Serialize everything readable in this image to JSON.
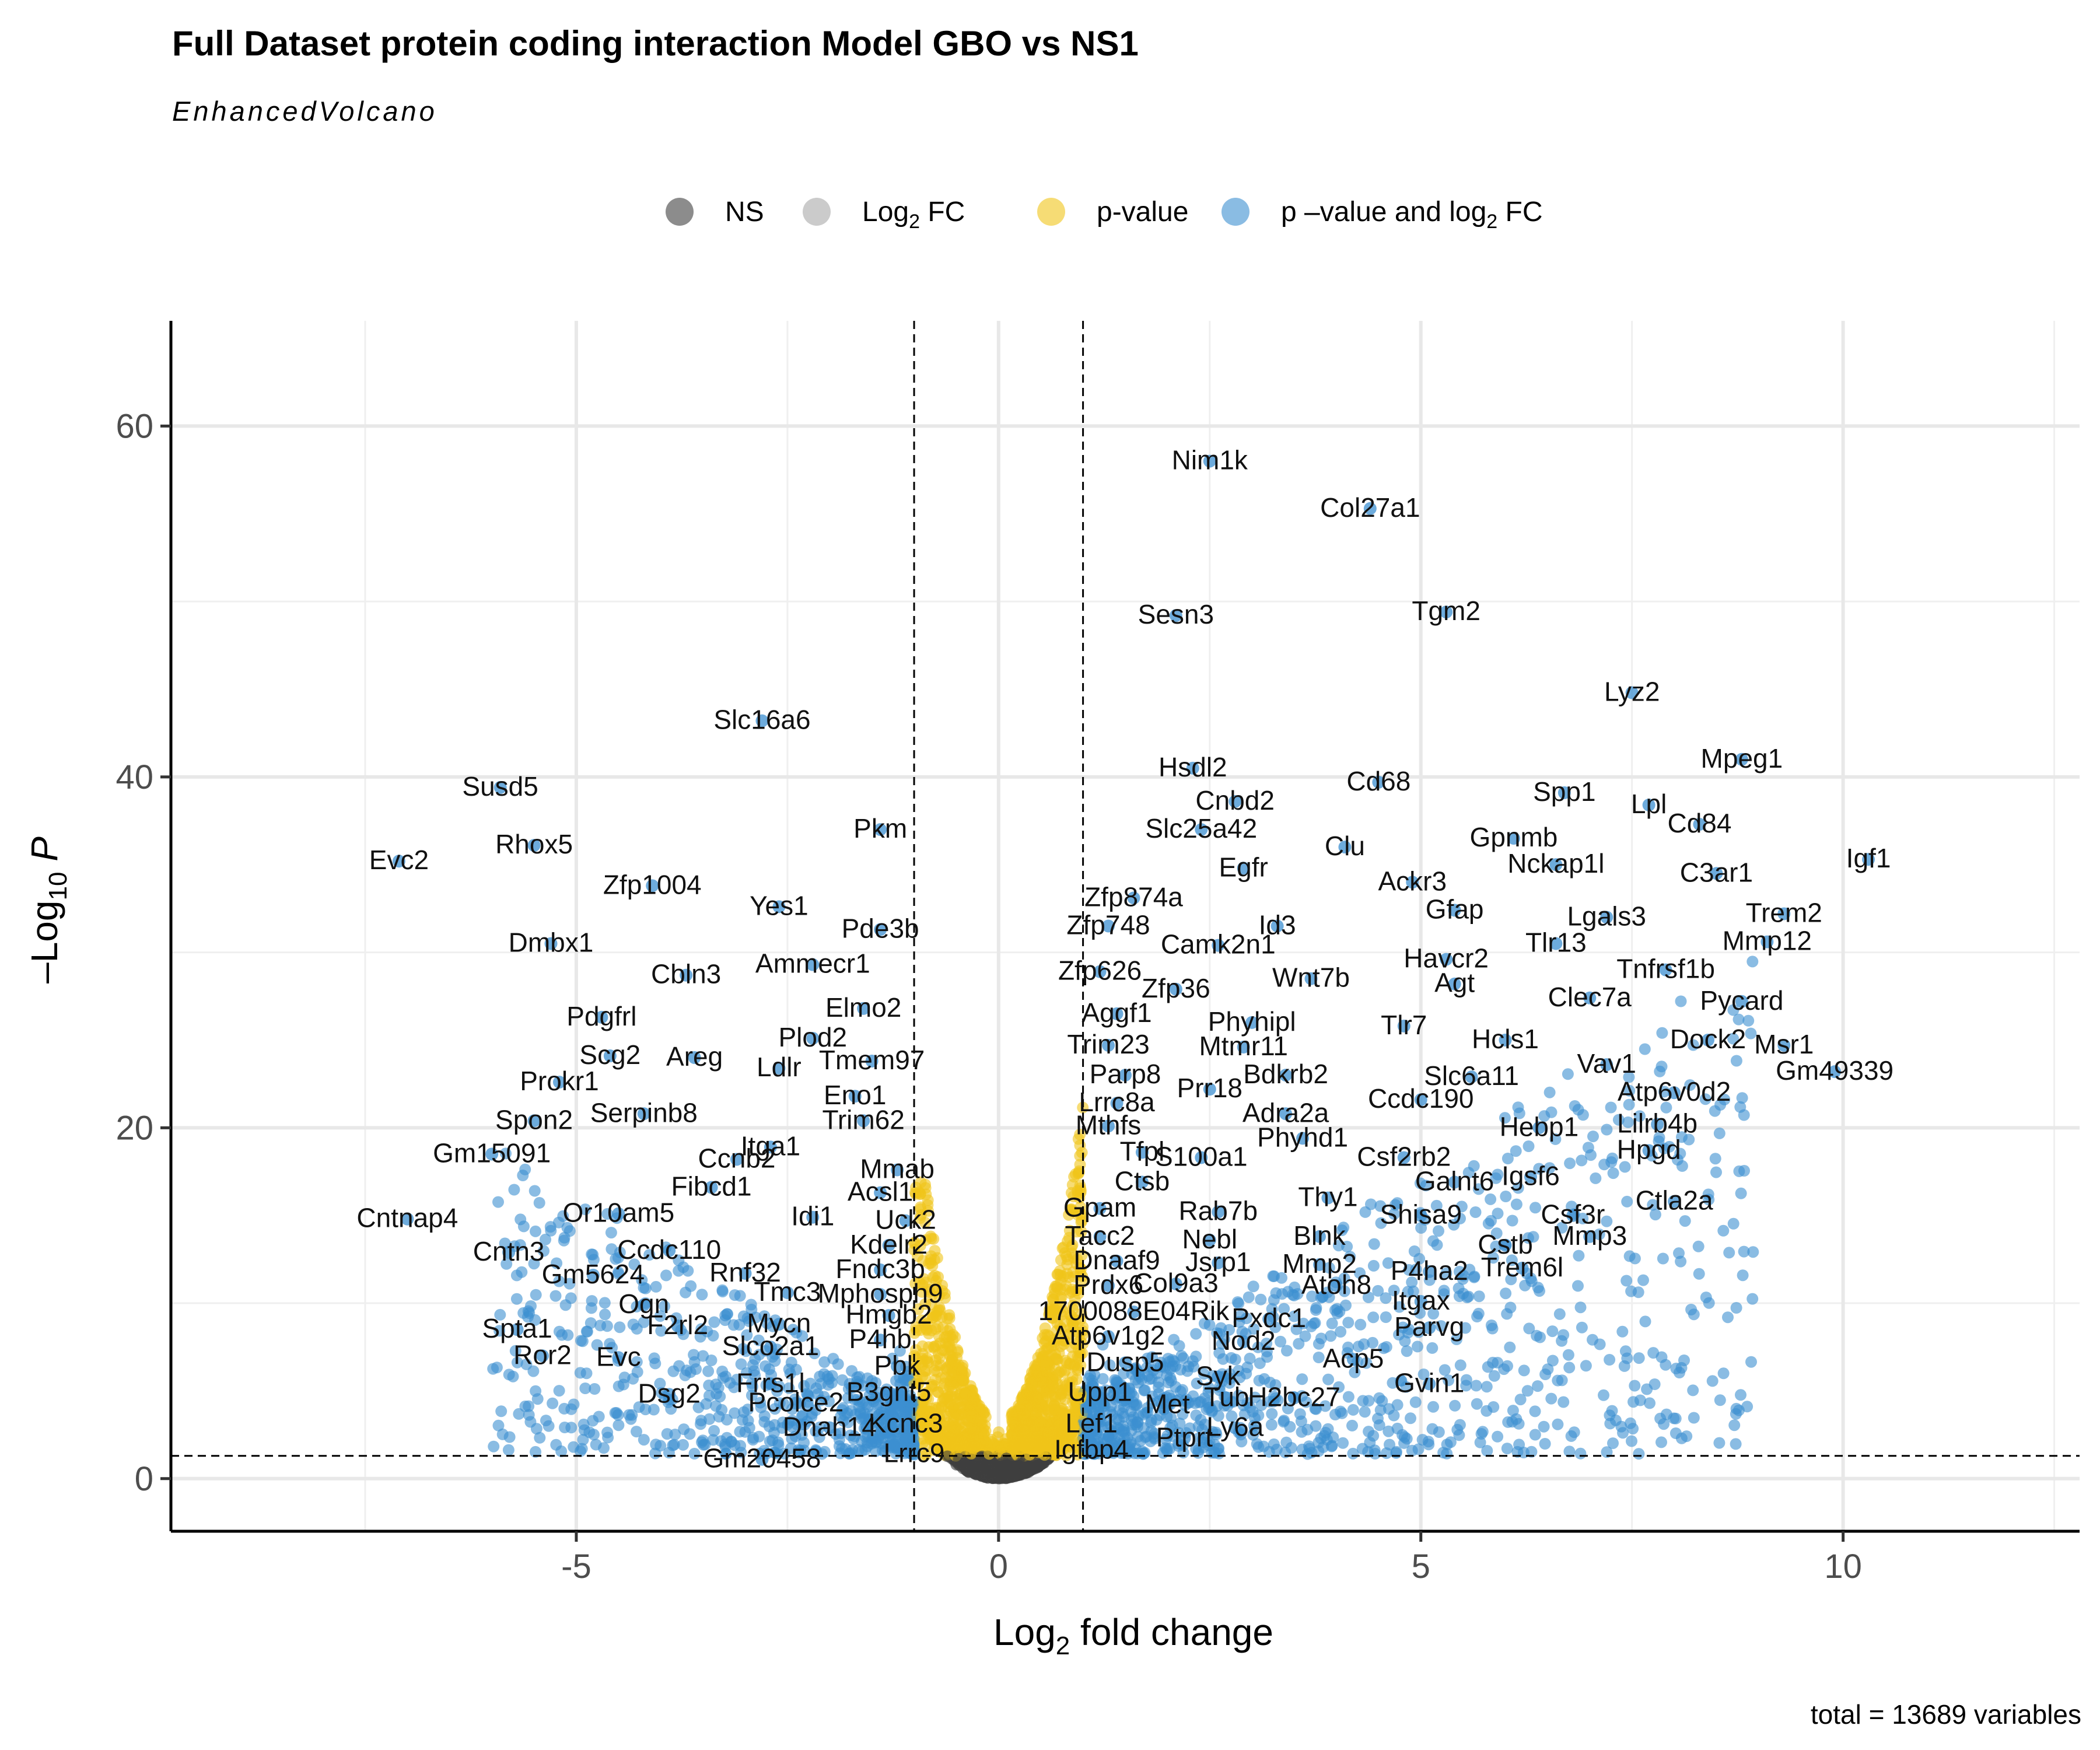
{
  "chart_data": {
    "type": "scatter",
    "title": "Full Dataset protein coding interaction Model GBO vs NS1",
    "subtitle": "EnhancedVolcano",
    "caption": "total = 13689 variables",
    "xlabel": {
      "base": "Log",
      "sub": "2",
      "rest": " fold change"
    },
    "ylabel": {
      "pre": "–Log",
      "sub": "10",
      "post": " P"
    },
    "xlim": [
      -9.8,
      12.8
    ],
    "ylim": [
      -3,
      66
    ],
    "x_ticks": [
      -5,
      0,
      5,
      10
    ],
    "x_tick_labels": [
      "-5",
      "0",
      "5",
      "10"
    ],
    "y_ticks": [
      0,
      20,
      40,
      60
    ],
    "y_tick_labels": [
      "0",
      "20",
      "40",
      "60"
    ],
    "grid": true,
    "fc_cutoff": 1,
    "p_cutoff_neglog10": 1.3,
    "legend_position": "top",
    "legend": [
      {
        "key": "ns",
        "label": "NS",
        "color": "#404040"
      },
      {
        "key": "fc",
        "label": "Log",
        "label_sub": "2",
        "label_post": " FC",
        "color": "#a8a8a8"
      },
      {
        "key": "p",
        "label": "p-value",
        "color": "#f0c419"
      },
      {
        "key": "both",
        "label": "p –value and log",
        "label_sub": "2",
        "label_post": " FC",
        "color": "#3c8fd0"
      }
    ],
    "labeled_points": [
      {
        "label": "Nim1k",
        "x": 2.5,
        "y": 58.0
      },
      {
        "label": "Col27a1",
        "x": 4.4,
        "y": 55.3
      },
      {
        "label": "Sesn3",
        "x": 2.1,
        "y": 49.2
      },
      {
        "label": "Tgm2",
        "x": 5.3,
        "y": 49.4
      },
      {
        "label": "Lyz2",
        "x": 7.5,
        "y": 44.8
      },
      {
        "label": "Slc16a6",
        "x": -2.8,
        "y": 43.2
      },
      {
        "label": "Hsdl2",
        "x": 2.3,
        "y": 40.5
      },
      {
        "label": "Cd68",
        "x": 4.5,
        "y": 39.7
      },
      {
        "label": "Mpeg1",
        "x": 8.8,
        "y": 41.0
      },
      {
        "label": "Susd5",
        "x": -5.9,
        "y": 39.4
      },
      {
        "label": "Cnbd2",
        "x": 2.8,
        "y": 38.6
      },
      {
        "label": "Spp1",
        "x": 6.7,
        "y": 39.1
      },
      {
        "label": "Lpl",
        "x": 7.7,
        "y": 38.4
      },
      {
        "label": "Pkm",
        "x": -1.4,
        "y": 37.0
      },
      {
        "label": "Slc25a42",
        "x": 2.4,
        "y": 37.0
      },
      {
        "label": "Gpnmb",
        "x": 6.1,
        "y": 36.5
      },
      {
        "label": "Cd84",
        "x": 8.3,
        "y": 37.3
      },
      {
        "label": "Rhox5",
        "x": -5.5,
        "y": 36.1
      },
      {
        "label": "Clu",
        "x": 4.1,
        "y": 36.0
      },
      {
        "label": "Evc2",
        "x": -7.1,
        "y": 35.2
      },
      {
        "label": "Nckap1l",
        "x": 6.6,
        "y": 35.0
      },
      {
        "label": "Egfr",
        "x": 2.9,
        "y": 34.8
      },
      {
        "label": "C3ar1",
        "x": 8.5,
        "y": 34.5
      },
      {
        "label": "Igf1",
        "x": 10.3,
        "y": 35.3
      },
      {
        "label": "Zfp1004",
        "x": -4.1,
        "y": 33.8
      },
      {
        "label": "Ackr3",
        "x": 4.9,
        "y": 34.0
      },
      {
        "label": "Zfp874a",
        "x": 1.6,
        "y": 33.1
      },
      {
        "label": "Yes1",
        "x": -2.6,
        "y": 32.6
      },
      {
        "label": "Gfap",
        "x": 5.4,
        "y": 32.4
      },
      {
        "label": "Lgals3",
        "x": 7.2,
        "y": 32.0
      },
      {
        "label": "Trem2",
        "x": 9.3,
        "y": 32.2
      },
      {
        "label": "Zfp748",
        "x": 1.3,
        "y": 31.5
      },
      {
        "label": "Id3",
        "x": 3.3,
        "y": 31.5
      },
      {
        "label": "Pde3b",
        "x": -1.4,
        "y": 31.3
      },
      {
        "label": "Dmbx1",
        "x": -5.3,
        "y": 30.5
      },
      {
        "label": "Camk2n1",
        "x": 2.6,
        "y": 30.4
      },
      {
        "label": "Tlr13",
        "x": 6.6,
        "y": 30.5
      },
      {
        "label": "Mmp12",
        "x": 9.1,
        "y": 30.6
      },
      {
        "label": "Havcr2",
        "x": 5.3,
        "y": 29.6
      },
      {
        "label": "Ammecr1",
        "x": -2.2,
        "y": 29.3
      },
      {
        "label": "Tnfrsf1b",
        "x": 7.9,
        "y": 29.0
      },
      {
        "label": "Cbln3",
        "x": -3.7,
        "y": 28.7
      },
      {
        "label": "Zfp626",
        "x": 1.2,
        "y": 28.9
      },
      {
        "label": "Wnt7b",
        "x": 3.7,
        "y": 28.5
      },
      {
        "label": "Agt",
        "x": 5.4,
        "y": 28.2
      },
      {
        "label": "Zfp36",
        "x": 2.1,
        "y": 27.9
      },
      {
        "label": "Clec7a",
        "x": 7.0,
        "y": 27.4
      },
      {
        "label": "Pycard",
        "x": 8.8,
        "y": 27.2
      },
      {
        "label": "Elmo2",
        "x": -1.6,
        "y": 26.8
      },
      {
        "label": "Aggf1",
        "x": 1.4,
        "y": 26.5
      },
      {
        "label": "Pdgfrl",
        "x": -4.7,
        "y": 26.3
      },
      {
        "label": "Phyhipl",
        "x": 3.0,
        "y": 26.0
      },
      {
        "label": "Tlr7",
        "x": 4.8,
        "y": 25.8
      },
      {
        "label": "Hcls1",
        "x": 6.0,
        "y": 25.0
      },
      {
        "label": "Plod2",
        "x": -2.2,
        "y": 25.1
      },
      {
        "label": "Dock2",
        "x": 8.4,
        "y": 25.0
      },
      {
        "label": "Trim23",
        "x": 1.3,
        "y": 24.7
      },
      {
        "label": "Mtmr11",
        "x": 2.9,
        "y": 24.6
      },
      {
        "label": "Msr1",
        "x": 9.3,
        "y": 24.7
      },
      {
        "label": "Scg2",
        "x": -4.6,
        "y": 24.1
      },
      {
        "label": "Areg",
        "x": -3.6,
        "y": 24.0
      },
      {
        "label": "Tmem97",
        "x": -1.5,
        "y": 23.8
      },
      {
        "label": "Vav1",
        "x": 7.2,
        "y": 23.6
      },
      {
        "label": "Ldlr",
        "x": -2.6,
        "y": 23.4
      },
      {
        "label": "Parp8",
        "x": 1.5,
        "y": 23.0
      },
      {
        "label": "Gm49339",
        "x": 9.9,
        "y": 23.2
      },
      {
        "label": "Bdkrb2",
        "x": 3.4,
        "y": 23.0
      },
      {
        "label": "Slc6a11",
        "x": 5.6,
        "y": 22.9
      },
      {
        "label": "Prokr1",
        "x": -5.2,
        "y": 22.6
      },
      {
        "label": "Prr18",
        "x": 2.5,
        "y": 22.2
      },
      {
        "label": "Atp6v0d2",
        "x": 8.0,
        "y": 22.0
      },
      {
        "label": "Eno1",
        "x": -1.7,
        "y": 21.8
      },
      {
        "label": "Lrrc8a",
        "x": 1.4,
        "y": 21.4
      },
      {
        "label": "Ccdc190",
        "x": 5.0,
        "y": 21.6
      },
      {
        "label": "Serpinb8",
        "x": -4.2,
        "y": 20.8
      },
      {
        "label": "Adra2a",
        "x": 3.4,
        "y": 20.8
      },
      {
        "label": "Lilrb4b",
        "x": 7.8,
        "y": 20.2
      },
      {
        "label": "Spon2",
        "x": -5.5,
        "y": 20.4
      },
      {
        "label": "Trim62",
        "x": -1.6,
        "y": 20.4
      },
      {
        "label": "Mthfs",
        "x": 1.3,
        "y": 20.1
      },
      {
        "label": "Hebp1",
        "x": 6.4,
        "y": 20.0
      },
      {
        "label": "Phyhd1",
        "x": 3.6,
        "y": 19.4
      },
      {
        "label": "Itga1",
        "x": -2.7,
        "y": 18.9
      },
      {
        "label": "Tfpl",
        "x": 1.7,
        "y": 18.6
      },
      {
        "label": "Hpgd",
        "x": 7.7,
        "y": 18.7
      },
      {
        "label": "Ccnb2",
        "x": -3.1,
        "y": 18.2
      },
      {
        "label": "Csf2rb2",
        "x": 4.8,
        "y": 18.3
      },
      {
        "label": "Gm15091",
        "x": -6.0,
        "y": 18.5
      },
      {
        "label": "S100a1",
        "x": 2.4,
        "y": 18.3
      },
      {
        "label": "Mmab",
        "x": -1.2,
        "y": 17.6
      },
      {
        "label": "Igsf6",
        "x": 6.3,
        "y": 17.2
      },
      {
        "label": "Ctsb",
        "x": 1.7,
        "y": 16.9
      },
      {
        "label": "Galnt6",
        "x": 5.4,
        "y": 16.9
      },
      {
        "label": "Fibcd1",
        "x": -3.4,
        "y": 16.6
      },
      {
        "label": "Acsl1",
        "x": -1.4,
        "y": 16.3
      },
      {
        "label": "Thy1",
        "x": 3.9,
        "y": 16.0
      },
      {
        "label": "Ctla2a",
        "x": 8.0,
        "y": 15.8
      },
      {
        "label": "Gpam",
        "x": 1.2,
        "y": 15.4
      },
      {
        "label": "Rab7b",
        "x": 2.6,
        "y": 15.2
      },
      {
        "label": "Csf3r",
        "x": 6.8,
        "y": 15.0
      },
      {
        "label": "Or10am5",
        "x": -4.5,
        "y": 15.1
      },
      {
        "label": "Shisa9",
        "x": 5.0,
        "y": 15.0
      },
      {
        "label": "Idi1",
        "x": -2.2,
        "y": 14.9
      },
      {
        "label": "Uck2",
        "x": -1.1,
        "y": 14.7
      },
      {
        "label": "Cntnap4",
        "x": -7.0,
        "y": 14.8
      },
      {
        "label": "Tacc2",
        "x": 1.2,
        "y": 13.8
      },
      {
        "label": "Nebl",
        "x": 2.5,
        "y": 13.6
      },
      {
        "label": "Blnk",
        "x": 3.8,
        "y": 13.8
      },
      {
        "label": "Mmp3",
        "x": 7.0,
        "y": 13.8
      },
      {
        "label": "Kdelr2",
        "x": -1.3,
        "y": 13.3
      },
      {
        "label": "Cstb",
        "x": 6.0,
        "y": 13.3
      },
      {
        "label": "Ccdc110",
        "x": -3.9,
        "y": 13.0
      },
      {
        "label": "Cntn3",
        "x": -5.8,
        "y": 12.9
      },
      {
        "label": "Dnaaf9",
        "x": 1.4,
        "y": 12.4
      },
      {
        "label": "Jsrp1",
        "x": 2.6,
        "y": 12.3
      },
      {
        "label": "Mmp2",
        "x": 3.8,
        "y": 12.2
      },
      {
        "label": "Trem6l",
        "x": 6.2,
        "y": 12.0
      },
      {
        "label": "Fndc3b",
        "x": -1.4,
        "y": 11.9
      },
      {
        "label": "Rnf32",
        "x": -3.0,
        "y": 11.7
      },
      {
        "label": "P4ha2",
        "x": 5.1,
        "y": 11.8
      },
      {
        "label": "Gm5624",
        "x": -4.8,
        "y": 11.6
      },
      {
        "label": "Col9a3",
        "x": 2.1,
        "y": 11.1
      },
      {
        "label": "Prdx6",
        "x": 1.3,
        "y": 11.0
      },
      {
        "label": "Atoh8",
        "x": 4.0,
        "y": 11.0
      },
      {
        "label": "Tmc3",
        "x": -2.5,
        "y": 10.6
      },
      {
        "label": "Mphosph9",
        "x": -1.4,
        "y": 10.5
      },
      {
        "label": "Itgax",
        "x": 5.0,
        "y": 10.1
      },
      {
        "label": "Ogn",
        "x": -4.2,
        "y": 9.9
      },
      {
        "label": "1700088E04Rik",
        "x": 1.6,
        "y": 9.5
      },
      {
        "label": "Hmgb2",
        "x": -1.3,
        "y": 9.3
      },
      {
        "label": "Pxdc1",
        "x": 3.2,
        "y": 9.1
      },
      {
        "label": "Mycn",
        "x": -2.6,
        "y": 8.8
      },
      {
        "label": "F2rl2",
        "x": -3.8,
        "y": 8.7
      },
      {
        "label": "Parvg",
        "x": 5.1,
        "y": 8.6
      },
      {
        "label": "Spta1",
        "x": -5.7,
        "y": 8.5
      },
      {
        "label": "Atp6v1g2",
        "x": 1.3,
        "y": 8.1
      },
      {
        "label": "Nod2",
        "x": 2.9,
        "y": 7.8
      },
      {
        "label": "P4hb",
        "x": -1.4,
        "y": 7.9
      },
      {
        "label": "Slco2a1",
        "x": -2.7,
        "y": 7.5
      },
      {
        "label": "Ror2",
        "x": -5.4,
        "y": 7.0
      },
      {
        "label": "Evc",
        "x": -4.5,
        "y": 6.9
      },
      {
        "label": "Acp5",
        "x": 4.2,
        "y": 6.8
      },
      {
        "label": "Dusp5",
        "x": 1.5,
        "y": 6.6
      },
      {
        "label": "Pbk",
        "x": -1.2,
        "y": 6.4
      },
      {
        "label": "Syk",
        "x": 2.6,
        "y": 5.8
      },
      {
        "label": "Gvin1",
        "x": 5.1,
        "y": 5.4
      },
      {
        "label": "Frrs1l",
        "x": -2.7,
        "y": 5.4
      },
      {
        "label": "Dsg2",
        "x": -3.9,
        "y": 4.8
      },
      {
        "label": "Upp1",
        "x": 1.2,
        "y": 4.9
      },
      {
        "label": "B3gnt5",
        "x": -1.3,
        "y": 4.9
      },
      {
        "label": "Tub",
        "x": 2.7,
        "y": 4.6
      },
      {
        "label": "H2bc27",
        "x": 3.5,
        "y": 4.6
      },
      {
        "label": "Pcolce2",
        "x": -2.4,
        "y": 4.3
      },
      {
        "label": "Met",
        "x": 2.0,
        "y": 4.2
      },
      {
        "label": "Lef1",
        "x": 1.1,
        "y": 3.1
      },
      {
        "label": "Kcnc3",
        "x": -1.1,
        "y": 3.1
      },
      {
        "label": "Ly6a",
        "x": 2.8,
        "y": 2.9
      },
      {
        "label": "Dnah14",
        "x": -2.0,
        "y": 2.9
      },
      {
        "label": "Ptprt",
        "x": 2.2,
        "y": 2.3
      },
      {
        "label": "Igfbp4",
        "x": 1.1,
        "y": 1.6
      },
      {
        "label": "Lrrc9",
        "x": -1.0,
        "y": 1.4
      },
      {
        "label": "Gm20458",
        "x": -2.8,
        "y": 1.1
      }
    ]
  }
}
